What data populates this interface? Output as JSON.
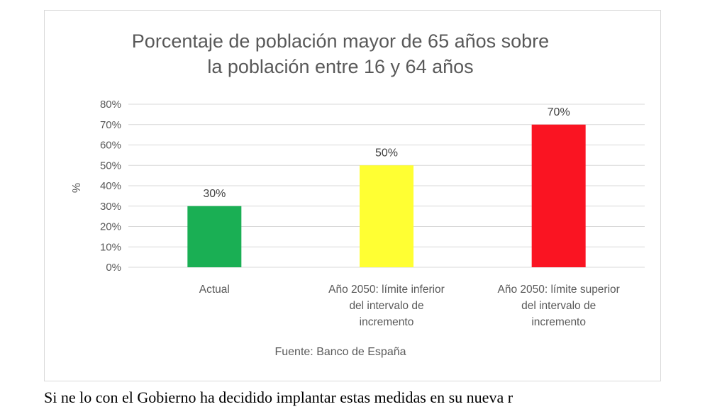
{
  "chart_data": {
    "type": "bar",
    "title_lines": [
      "Porcentaje de población mayor de 65 años sobre",
      "la población entre 16 y 64 años"
    ],
    "categories": [
      [
        "Actual"
      ],
      [
        "Año 2050: límite inferior",
        "del intervalo de",
        "incremento"
      ],
      [
        "Año 2050: límite superior",
        "del intervalo de",
        "incremento"
      ]
    ],
    "values": [
      30,
      50,
      70
    ],
    "data_labels": [
      "30%",
      "50%",
      "70%"
    ],
    "colors": [
      "#1aaf54",
      "#ffff33",
      "#fa1422"
    ],
    "ylabel": "%",
    "ylim": [
      0,
      80
    ],
    "yticks": [
      0,
      10,
      20,
      30,
      40,
      50,
      60,
      70,
      80
    ],
    "ytick_labels": [
      "0%",
      "10%",
      "20%",
      "30%",
      "40%",
      "50%",
      "60%",
      "70%",
      "80%"
    ],
    "gridlines": true,
    "source": "Fuente: Banco de España"
  },
  "body_text": "Si ne lo con el Gobierno ha decidido implantar estas medidas en su nueva r"
}
